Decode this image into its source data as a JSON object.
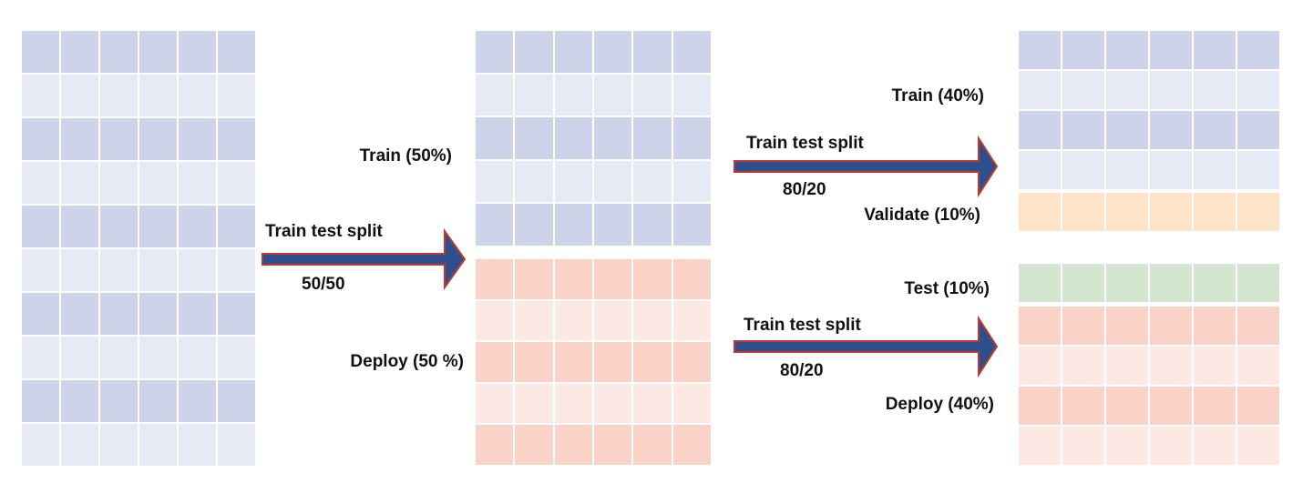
{
  "colors": {
    "train_dark": "#cdd3e8",
    "train_light": "#e7eaf4",
    "deploy_dark": "#f9d2c8",
    "deploy_light": "#fce9e4",
    "validate": "#fde4c9",
    "test": "#d3e4cf",
    "arrow_fill": "#2e4f8e",
    "arrow_stroke": "#c0392b"
  },
  "tables": {
    "full_dataset": {
      "rows": 10,
      "cols": 6,
      "pattern": [
        "train_dark",
        "train_light",
        "train_dark",
        "train_light",
        "train_dark",
        "train_light",
        "train_dark",
        "train_light",
        "train_dark",
        "train_light"
      ]
    },
    "stage1_train": {
      "rows": 5,
      "cols": 6,
      "pattern": [
        "train_dark",
        "train_light",
        "train_dark",
        "train_light",
        "train_dark"
      ]
    },
    "stage1_deploy": {
      "rows": 5,
      "cols": 6,
      "pattern": [
        "deploy_dark",
        "deploy_light",
        "deploy_dark",
        "deploy_light",
        "deploy_dark"
      ]
    },
    "stage2_train": {
      "rows": 4,
      "cols": 6,
      "pattern": [
        "train_dark",
        "train_light",
        "train_dark",
        "train_light"
      ]
    },
    "stage2_validate": {
      "rows": 1,
      "cols": 6,
      "pattern": [
        "validate"
      ]
    },
    "stage2_test": {
      "rows": 1,
      "cols": 6,
      "pattern": [
        "test"
      ]
    },
    "stage2_deploy": {
      "rows": 4,
      "cols": 6,
      "pattern": [
        "deploy_dark",
        "deploy_light",
        "deploy_dark",
        "deploy_light"
      ]
    }
  },
  "splits": {
    "first": {
      "title": "Train test split",
      "ratio": "50/50"
    },
    "second_top": {
      "title": "Train test split",
      "ratio": "80/20"
    },
    "second_bottom": {
      "title": "Train test split",
      "ratio": "80/20"
    }
  },
  "labels": {
    "train_50": "Train (50%)",
    "deploy_50": "Deploy (50 %)",
    "train_40": "Train (40%)",
    "validate_10": "Validate  (10%)",
    "test_10": "Test  (10%)",
    "deploy_40": "Deploy  (40%)"
  }
}
